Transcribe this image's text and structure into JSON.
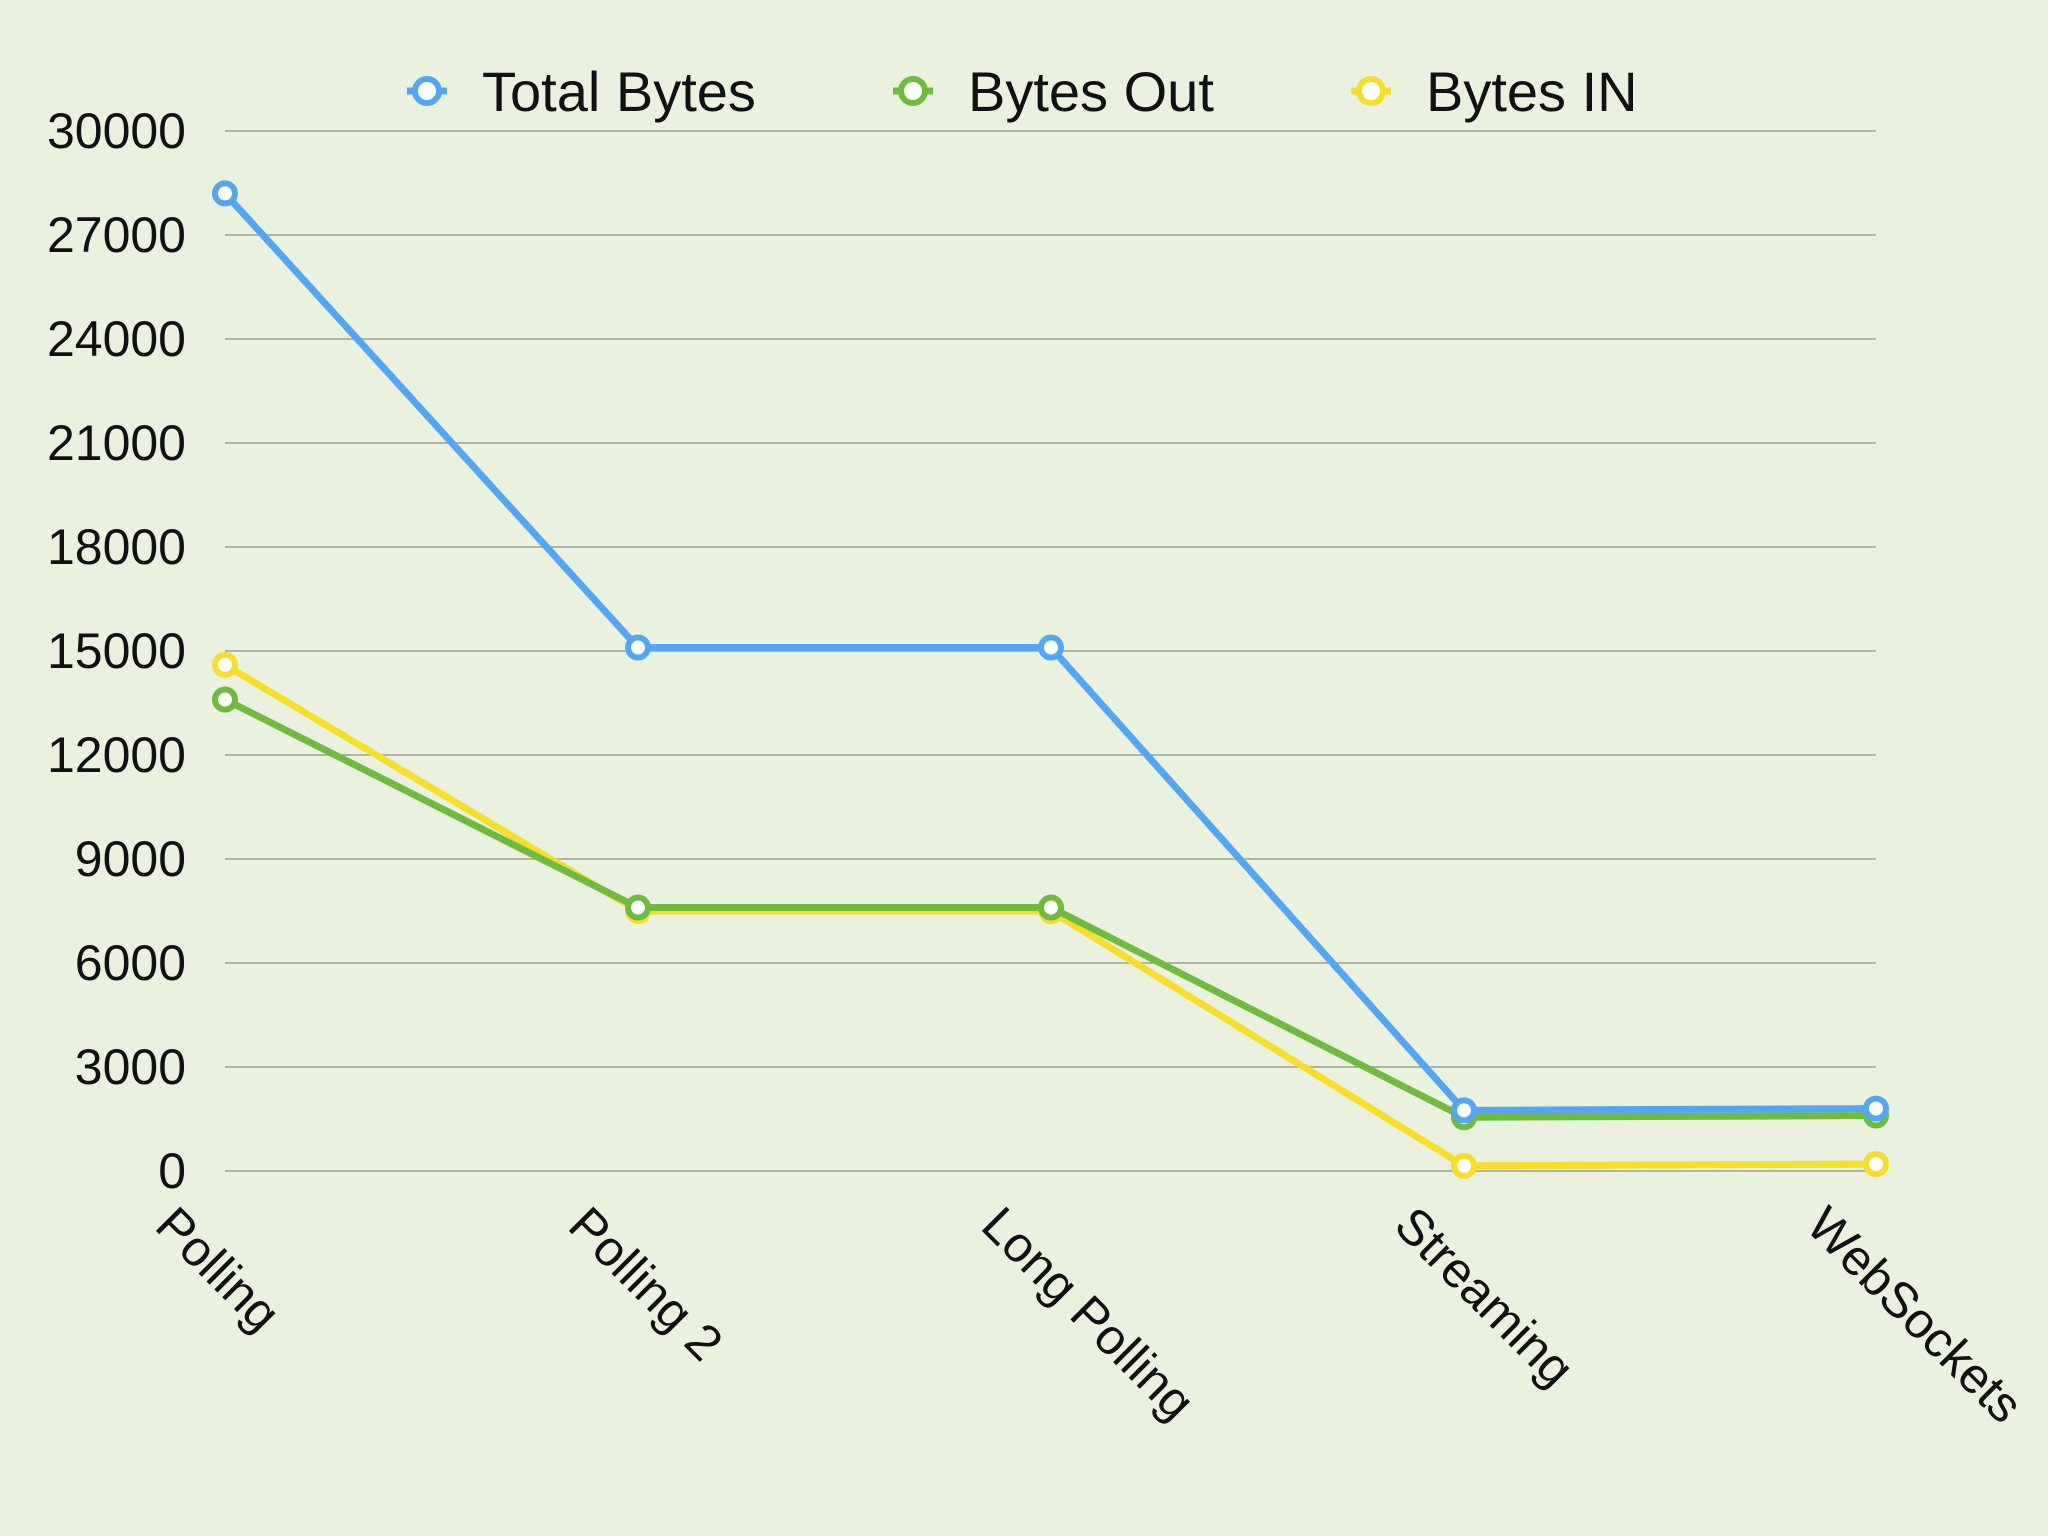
{
  "chart_data": {
    "type": "line",
    "title": "",
    "xlabel": "",
    "ylabel": "",
    "categories": [
      "Polling",
      "Polling 2",
      "Long Polling",
      "Streaming",
      "WebSockets"
    ],
    "y_ticks": [
      "30000",
      "27000",
      "24000",
      "21000",
      "18000",
      "15000",
      "12000",
      "9000",
      "6000",
      "3000",
      "0"
    ],
    "ylim": [
      0,
      30000
    ],
    "grid": true,
    "legend_position": "top",
    "series": [
      {
        "name": "Total Bytes",
        "color": "#56a5f0",
        "values": [
          28200,
          15100,
          15100,
          1750,
          1800
        ]
      },
      {
        "name": "Bytes Out",
        "color": "#6fba40",
        "values": [
          13600,
          7600,
          7600,
          1550,
          1600
        ]
      },
      {
        "name": "Bytes IN",
        "color": "#f7de2e",
        "values": [
          14600,
          7500,
          7500,
          150,
          200
        ]
      }
    ]
  }
}
